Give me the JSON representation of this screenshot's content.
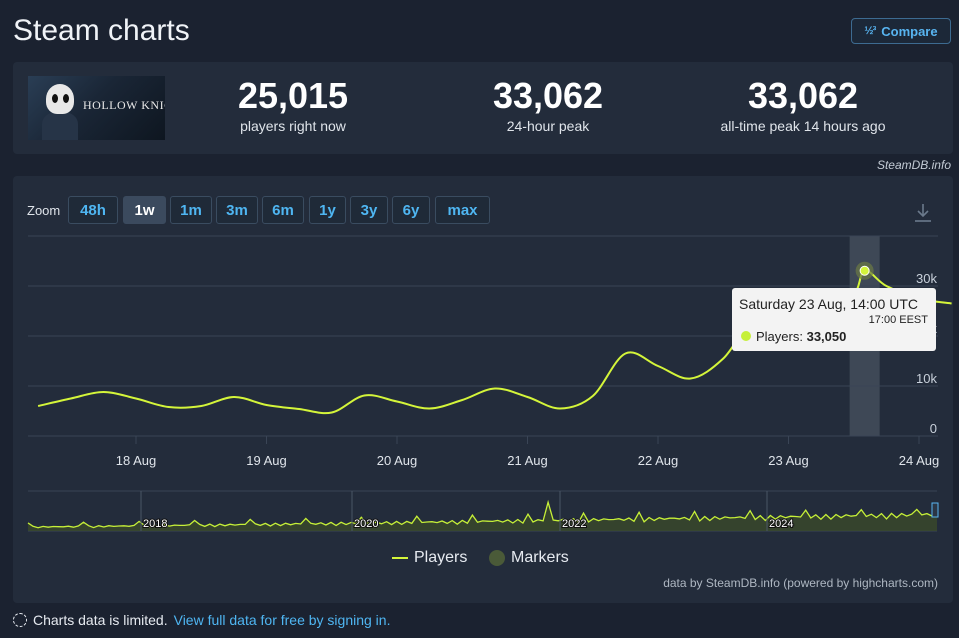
{
  "header": {
    "title": "Steam charts",
    "compare_icon": "1/2/3",
    "compare_label": "Compare"
  },
  "game": {
    "logo_text": "HOLLOW KNIGHT"
  },
  "stats": [
    {
      "value": "25,015",
      "label": "players right now"
    },
    {
      "value": "33,062",
      "label": "24-hour peak"
    },
    {
      "value": "33,062",
      "label": "all-time peak 14 hours ago"
    }
  ],
  "brand_tag": "SteamDB.info",
  "zoom": {
    "label": "Zoom",
    "options": [
      "48h",
      "1w",
      "1m",
      "3m",
      "6m",
      "1y",
      "3y",
      "6y",
      "max"
    ],
    "active": "1w"
  },
  "chart_data": {
    "type": "line",
    "series": [
      {
        "name": "Players",
        "color": "#d4f53a",
        "x": [
          "17 Aug 06:00",
          "17 Aug 12:00",
          "17 Aug 18:00",
          "18 Aug 00:00",
          "18 Aug 06:00",
          "18 Aug 12:00",
          "18 Aug 18:00",
          "19 Aug 00:00",
          "19 Aug 06:00",
          "19 Aug 12:00",
          "19 Aug 18:00",
          "20 Aug 00:00",
          "20 Aug 06:00",
          "20 Aug 12:00",
          "20 Aug 18:00",
          "21 Aug 00:00",
          "21 Aug 06:00",
          "21 Aug 12:00",
          "21 Aug 18:00",
          "22 Aug 00:00",
          "22 Aug 06:00",
          "22 Aug 12:00",
          "22 Aug 18:00",
          "23 Aug 00:00",
          "23 Aug 06:00",
          "23 Aug 12:00",
          "23 Aug 14:00",
          "23 Aug 18:00",
          "24 Aug 00:00",
          "24 Aug 06:00"
        ],
        "y": [
          6000,
          7500,
          8800,
          7500,
          5800,
          6000,
          7800,
          6200,
          5400,
          4700,
          8100,
          6900,
          5500,
          7200,
          9500,
          7800,
          5500,
          8000,
          16500,
          14000,
          11500,
          15500,
          23500,
          20500,
          21000,
          28000,
          33050,
          30000,
          27500,
          26500
        ]
      }
    ],
    "y_ticks": [
      "0",
      "10k",
      "20k",
      "30k"
    ],
    "ylim": [
      0,
      40000
    ],
    "x_ticks": [
      "18 Aug",
      "19 Aug",
      "20 Aug",
      "21 Aug",
      "22 Aug",
      "23 Aug",
      "24 Aug"
    ],
    "navigator": {
      "labels": [
        "2018",
        "2020",
        "2022",
        "2024"
      ]
    },
    "tooltip": {
      "title": "Saturday 23 Aug, 14:00 UTC",
      "subtitle": "17:00 EEST",
      "series_label": "Players:",
      "value": "33,050"
    },
    "legend": [
      "Players",
      "Markers"
    ],
    "legend_position": "bottom",
    "grid": true,
    "credits": "data by SteamDB.info (powered by highcharts.com)"
  },
  "notice": {
    "text": "Charts data is limited.",
    "link": "View full data for free by signing in."
  }
}
